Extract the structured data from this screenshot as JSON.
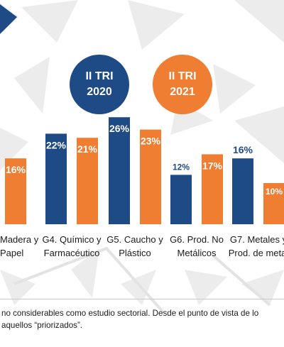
{
  "legend": [
    {
      "line1": "II TRI",
      "line2": "2020",
      "color": "#1e4a86"
    },
    {
      "line1": "II TRI",
      "line2": "2021",
      "color": "#ef7d32"
    }
  ],
  "chart_data": {
    "type": "bar",
    "title": "",
    "xlabel": "",
    "ylabel": "",
    "categories": [
      [
        "Madera y",
        "Papel"
      ],
      [
        "G4. Químico y",
        "Farmacéutico"
      ],
      [
        "G5. Caucho y",
        "Plástico"
      ],
      [
        "G6. Prod. No",
        "Metálicos"
      ],
      [
        "G7. Metales y",
        "Prod. de metal"
      ]
    ],
    "series": [
      {
        "legend": "II TRI 2020",
        "color": "#1e4a86",
        "values": [
          null,
          22,
          26,
          12,
          16
        ],
        "labels": [
          "",
          "22%",
          "26%",
          "12%",
          "16%"
        ]
      },
      {
        "legend": "II TRI 2021",
        "color": "#ef7d32",
        "values": [
          16,
          21,
          23,
          17,
          10
        ],
        "labels": [
          "16%",
          "21%",
          "23%",
          "17%",
          "10%"
        ]
      }
    ],
    "ylim": [
      0,
      30
    ],
    "grid": false,
    "legend_position": "top"
  },
  "footnote": [
    "no considerables como estudio sectorial. Desde el punto de vista de lo",
    "aquellos “priorizados”."
  ]
}
